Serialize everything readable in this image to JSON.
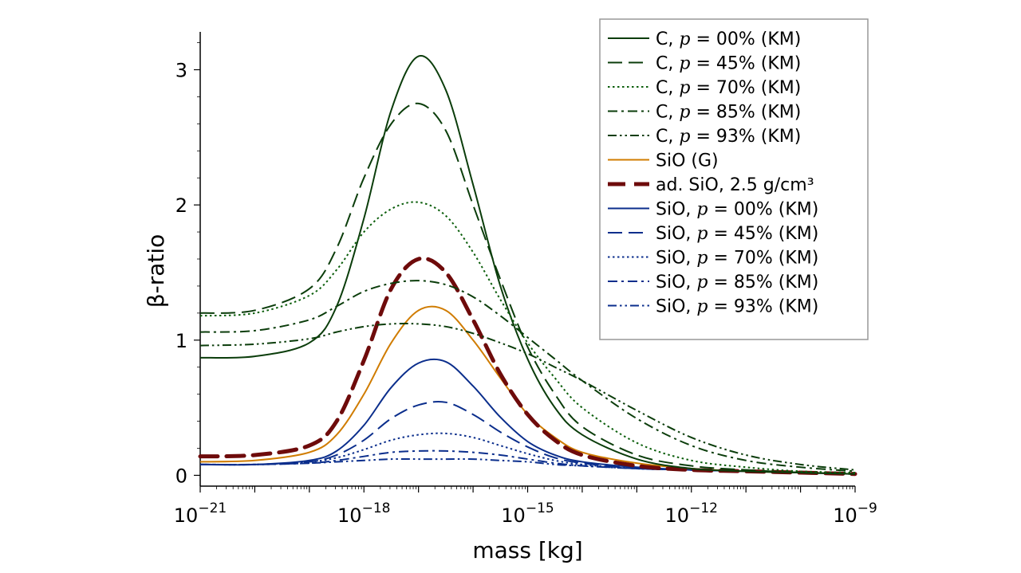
{
  "chart_data": {
    "type": "line",
    "title": "",
    "xlabel": "mass [kg]",
    "ylabel": "β-ratio",
    "x_scale": "log",
    "xlim_exp": [
      -21,
      -9
    ],
    "ylim": [
      -0.08,
      3.28
    ],
    "x_tick_labels": [
      {
        "exp": -21,
        "base": "10",
        "sup": "−21"
      },
      {
        "exp": -18,
        "base": "10",
        "sup": "−18"
      },
      {
        "exp": -15,
        "base": "10",
        "sup": "−15"
      },
      {
        "exp": -12,
        "base": "10",
        "sup": "−12"
      },
      {
        "exp": -9,
        "base": "10",
        "sup": "−9"
      }
    ],
    "y_ticks": [
      0,
      1,
      2,
      3
    ],
    "y_tick_labels": [
      "0",
      "1",
      "2",
      "3"
    ],
    "x_log10_mass": [
      -21,
      -20,
      -19,
      -18.5,
      -18,
      -17.5,
      -17,
      -16.5,
      -16,
      -15.5,
      -15,
      -14.5,
      -14,
      -13,
      -12,
      -11,
      -10,
      -9
    ],
    "legend": {
      "location": "upper right"
    },
    "series": [
      {
        "name": "C, p = 00% (KM)",
        "label_pre": "C, ",
        "label_var": "p",
        "label_post": " = 00% (KM)",
        "color": "#0b3d0b",
        "dash": "solid",
        "width": 2,
        "values": [
          0.87,
          0.88,
          0.98,
          1.25,
          1.9,
          2.7,
          3.1,
          2.85,
          2.15,
          1.4,
          0.86,
          0.5,
          0.3,
          0.12,
          0.05,
          0.03,
          0.02,
          0.01
        ]
      },
      {
        "name": "C, p = 45% (KM)",
        "label_pre": "C, ",
        "label_var": "p",
        "label_post": " = 45% (KM)",
        "color": "#0b3d0b",
        "dash": "long",
        "width": 2,
        "values": [
          1.2,
          1.22,
          1.38,
          1.68,
          2.2,
          2.6,
          2.75,
          2.55,
          2.0,
          1.45,
          0.95,
          0.6,
          0.36,
          0.15,
          0.07,
          0.04,
          0.02,
          0.01
        ]
      },
      {
        "name": "C, p = 70% (KM)",
        "label_pre": "C, ",
        "label_var": "p",
        "label_post": " = 70% (KM)",
        "color": "#0b5e0b",
        "dash": "dot",
        "width": 2,
        "values": [
          1.18,
          1.2,
          1.33,
          1.52,
          1.8,
          1.97,
          2.02,
          1.92,
          1.65,
          1.3,
          0.98,
          0.72,
          0.5,
          0.24,
          0.11,
          0.06,
          0.03,
          0.02
        ]
      },
      {
        "name": "C, p = 85% (KM)",
        "label_pre": "C, ",
        "label_var": "p",
        "label_post": " = 85% (KM)",
        "color": "#0b3d0b",
        "dash": "dashdot",
        "width": 2,
        "values": [
          1.06,
          1.07,
          1.15,
          1.25,
          1.36,
          1.42,
          1.44,
          1.41,
          1.32,
          1.18,
          1.02,
          0.86,
          0.7,
          0.42,
          0.22,
          0.11,
          0.06,
          0.03
        ]
      },
      {
        "name": "C, p = 93% (KM)",
        "label_pre": "C, ",
        "label_var": "p",
        "label_post": " = 93% (KM)",
        "color": "#0b3d0b",
        "dash": "dashdotdot",
        "width": 2,
        "values": [
          0.96,
          0.97,
          1.01,
          1.06,
          1.1,
          1.12,
          1.12,
          1.1,
          1.05,
          0.98,
          0.9,
          0.8,
          0.7,
          0.48,
          0.28,
          0.15,
          0.08,
          0.04
        ]
      },
      {
        "name": "SiO (G)",
        "label_pre": "SiO (G)",
        "label_var": "",
        "label_post": "",
        "color": "#d07c00",
        "dash": "solid",
        "width": 2,
        "values": [
          0.1,
          0.11,
          0.17,
          0.3,
          0.6,
          0.98,
          1.22,
          1.22,
          1.0,
          0.72,
          0.45,
          0.28,
          0.17,
          0.09,
          0.05,
          0.03,
          0.02,
          0.01
        ]
      },
      {
        "name": "ad. SiO, 2.5 g/cm³",
        "label_pre": "ad. SiO, 2.5 g/cm³",
        "label_var": "",
        "label_post": "",
        "color": "#6e0b0b",
        "dash": "heavy",
        "width": 5,
        "values": [
          0.14,
          0.15,
          0.22,
          0.4,
          0.85,
          1.38,
          1.6,
          1.5,
          1.15,
          0.75,
          0.45,
          0.26,
          0.15,
          0.07,
          0.04,
          0.03,
          0.02,
          0.01
        ]
      },
      {
        "name": "SiO, p = 00% (KM)",
        "label_pre": "SiO, ",
        "label_var": "p",
        "label_post": " = 00% (KM)",
        "color": "#0b2e8c",
        "dash": "solid",
        "width": 2,
        "values": [
          0.08,
          0.08,
          0.11,
          0.18,
          0.37,
          0.65,
          0.83,
          0.84,
          0.66,
          0.43,
          0.25,
          0.15,
          0.1,
          0.06,
          0.04,
          0.03,
          0.02,
          0.01
        ]
      },
      {
        "name": "SiO, p = 45% (KM)",
        "label_pre": "SiO, ",
        "label_var": "p",
        "label_post": " = 45% (KM)",
        "color": "#0b2e8c",
        "dash": "long",
        "width": 2,
        "values": [
          0.08,
          0.08,
          0.1,
          0.15,
          0.26,
          0.42,
          0.52,
          0.54,
          0.45,
          0.32,
          0.21,
          0.13,
          0.09,
          0.05,
          0.04,
          0.03,
          0.02,
          0.01
        ]
      },
      {
        "name": "SiO, p = 70% (KM)",
        "label_pre": "SiO, ",
        "label_var": "p",
        "label_post": " = 70% (KM)",
        "color": "#0b2e8c",
        "dash": "dot",
        "width": 2,
        "values": [
          0.08,
          0.08,
          0.1,
          0.13,
          0.19,
          0.26,
          0.3,
          0.31,
          0.28,
          0.22,
          0.16,
          0.11,
          0.08,
          0.05,
          0.04,
          0.03,
          0.02,
          0.01
        ]
      },
      {
        "name": "SiO, p = 85% (KM)",
        "label_pre": "SiO, ",
        "label_var": "p",
        "label_post": " = 85% (KM)",
        "color": "#0b2e8c",
        "dash": "dashdot",
        "width": 2,
        "values": [
          0.08,
          0.08,
          0.09,
          0.11,
          0.14,
          0.17,
          0.18,
          0.18,
          0.17,
          0.15,
          0.12,
          0.09,
          0.07,
          0.05,
          0.04,
          0.03,
          0.02,
          0.01
        ]
      },
      {
        "name": "SiO, p = 93% (KM)",
        "label_pre": "SiO, ",
        "label_var": "p",
        "label_post": " = 93% (KM)",
        "color": "#0b2e8c",
        "dash": "dashdotdot",
        "width": 2,
        "values": [
          0.08,
          0.08,
          0.09,
          0.1,
          0.11,
          0.12,
          0.12,
          0.12,
          0.12,
          0.11,
          0.1,
          0.08,
          0.07,
          0.05,
          0.04,
          0.03,
          0.02,
          0.01
        ]
      }
    ]
  }
}
